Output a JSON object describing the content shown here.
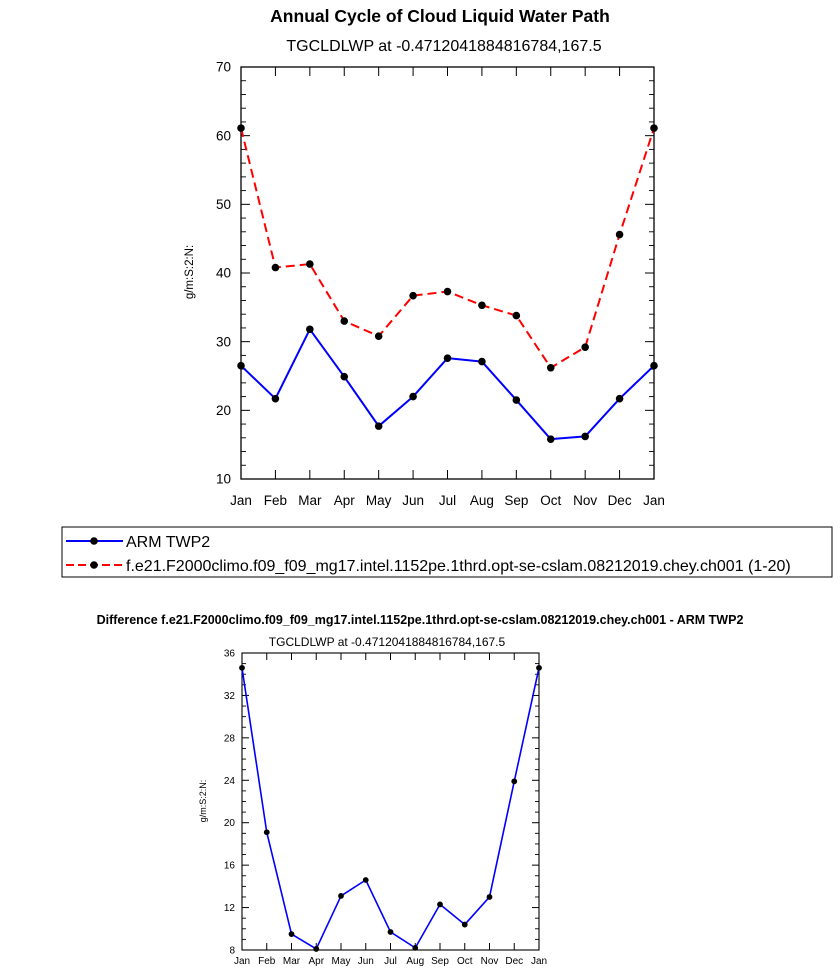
{
  "chart_data": [
    {
      "type": "line",
      "title": "Annual Cycle of Cloud Liquid Water Path",
      "subtitle": "TGCLDLWP at -0.4712041884816784,167.5",
      "xlabel": "",
      "ylabel": "g/m:S:2:N:",
      "ylim": [
        10,
        70
      ],
      "yticks": [
        10,
        20,
        30,
        40,
        50,
        60,
        70
      ],
      "categories": [
        "Jan",
        "Feb",
        "Mar",
        "Apr",
        "May",
        "Jun",
        "Jul",
        "Aug",
        "Sep",
        "Oct",
        "Nov",
        "Dec",
        "Jan"
      ],
      "series": [
        {
          "name": "ARM TWP2",
          "color": "#0000ff",
          "dash": "solid",
          "values": [
            26.5,
            21.7,
            31.8,
            24.9,
            17.7,
            22.0,
            27.6,
            27.1,
            21.5,
            15.8,
            16.2,
            21.7,
            26.5
          ]
        },
        {
          "name": "f.e21.F2000climo.f09_f09_mg17.intel.1152pe.1thrd.opt-se-cslam.08212019.chey.ch001 (1-20)",
          "color": "#ff0000",
          "dash": "dashed",
          "values": [
            61.1,
            40.8,
            41.3,
            33.0,
            30.8,
            36.7,
            37.3,
            35.3,
            33.8,
            26.2,
            29.2,
            45.6,
            61.1
          ]
        }
      ]
    },
    {
      "type": "line",
      "title": "Difference f.e21.F2000climo.f09_f09_mg17.intel.1152pe.1thrd.opt-se-cslam.08212019.chey.ch001 - ARM TWP2",
      "subtitle": "TGCLDLWP at -0.4712041884816784,167.5",
      "xlabel": "",
      "ylabel": "g/m:S:2:N:",
      "ylim": [
        8,
        36
      ],
      "yticks": [
        8,
        12,
        16,
        20,
        24,
        28,
        32,
        36
      ],
      "categories": [
        "Jan",
        "Feb",
        "Mar",
        "Apr",
        "May",
        "Jun",
        "Jul",
        "Aug",
        "Sep",
        "Oct",
        "Nov",
        "Dec",
        "Jan"
      ],
      "series": [
        {
          "name": "Difference",
          "color": "#0000ff",
          "dash": "solid",
          "values": [
            34.6,
            19.1,
            9.5,
            8.1,
            13.1,
            14.6,
            9.7,
            8.2,
            12.3,
            10.4,
            13.0,
            23.9,
            34.6
          ]
        }
      ]
    }
  ]
}
